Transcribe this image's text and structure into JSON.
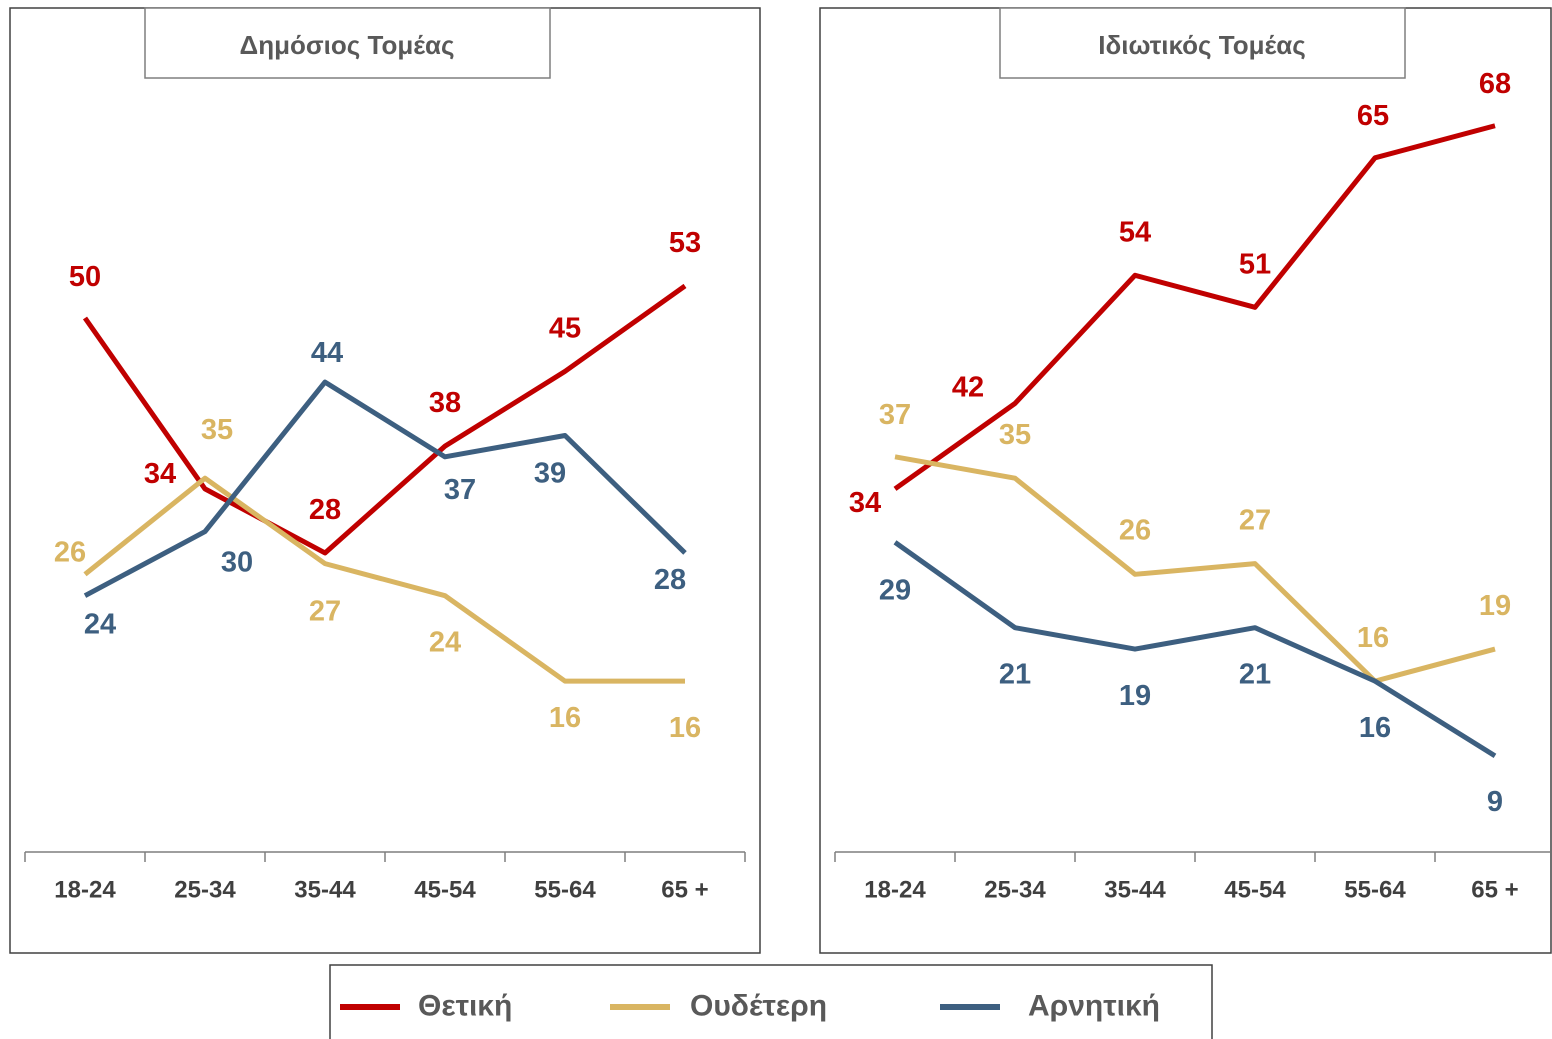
{
  "chart_data": [
    {
      "type": "line",
      "title": "Δημόσιος Τομέας",
      "categories": [
        "18-24",
        "25-34",
        "35-44",
        "45-54",
        "55-64",
        "65 +"
      ],
      "ylim": [
        0,
        80
      ],
      "series": [
        {
          "name": "Θετική",
          "color": "#c00000",
          "values": [
            50,
            34,
            28,
            38,
            45,
            53
          ]
        },
        {
          "name": "Ουδέτερη",
          "color": "#d9b562",
          "values": [
            26,
            35,
            27,
            24,
            16,
            16
          ]
        },
        {
          "name": "Αρνητική",
          "color": "#3d5f80",
          "values": [
            24,
            30,
            44,
            37,
            39,
            28
          ]
        }
      ]
    },
    {
      "type": "line",
      "title": "Ιδιωτικός Τομέας",
      "categories": [
        "18-24",
        "25-34",
        "35-44",
        "45-54",
        "55-64",
        "65 +"
      ],
      "ylim": [
        0,
        80
      ],
      "series": [
        {
          "name": "Θετική",
          "color": "#c00000",
          "values": [
            34,
            42,
            54,
            51,
            65,
            68
          ]
        },
        {
          "name": "Ουδέτερη",
          "color": "#d9b562",
          "values": [
            37,
            35,
            26,
            27,
            16,
            19
          ]
        },
        {
          "name": "Αρνητική",
          "color": "#3d5f80",
          "values": [
            29,
            21,
            19,
            21,
            16,
            9
          ]
        }
      ]
    }
  ]
}
